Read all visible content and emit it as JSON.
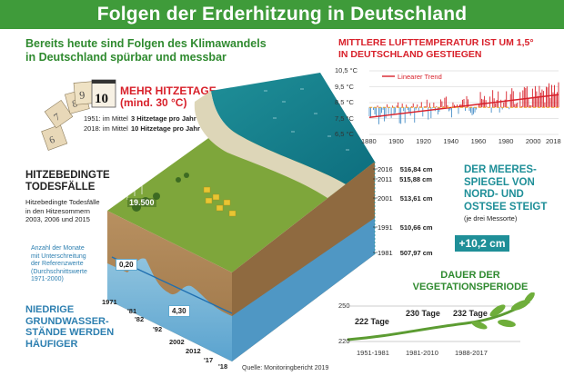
{
  "header": {
    "title": "Folgen der Erderhitzung in Deutschland"
  },
  "subtitle": {
    "line1": "Bereits heute sind Folgen des Klimawandels",
    "line2": "in Deutschland spürbar und messbar"
  },
  "hot_days": {
    "calendar_number": "10",
    "title_line1": "MEHR HITZETAGE",
    "title_line2": "(mind. 30 °C)",
    "rows": [
      {
        "label": "1951: im Mittel",
        "value": "3 Hitzetage pro Jahr"
      },
      {
        "label": "2018: im Mittel",
        "value": "10 Hitzetage pro Jahr"
      }
    ]
  },
  "heat_deaths": {
    "title_line1": "HITZEBEDINGTE",
    "title_line2": "TODESFÄLLE",
    "text_line1": "Hitzebedingte Todesfälle",
    "text_line2": "in den Hitzesommern",
    "text_line3": "2003, 2006 und 2015",
    "value": "19.500"
  },
  "groundwater": {
    "note_line1": "Anzahl der Monate",
    "note_line2": "mit Unterschreitung",
    "note_line3": "der Referenzwerte",
    "note_line4": "(Durchschnittswerte",
    "note_line5": "1971-2000)",
    "title_line1": "NIEDRIGE",
    "title_line2": "GRUNDWASSER-",
    "title_line3": "STÄNDE WERDEN",
    "title_line4": "HÄUFIGER",
    "value_1": "0,20",
    "value_2": "4,30",
    "years": [
      "1971",
      "'81",
      "'82",
      "'92",
      "2002",
      "2012",
      "'17",
      "'18"
    ]
  },
  "temperature": {
    "title_line1": "MITTLERE LUFTTEMPERATUR IST UM 1,5°",
    "title_line2": "IN DEUTSCHLAND GESTIEGEN",
    "legend": "Linearer Trend",
    "y_ticks": [
      "10,5 °C",
      "9,5 °C",
      "8,5 °C",
      "7,5 °C",
      "6,5 °C"
    ],
    "x_ticks": [
      "1880",
      "1900",
      "1920",
      "1940",
      "1960",
      "1980",
      "2000",
      "2018"
    ],
    "colors": {
      "warm": "#d8202a",
      "cold": "#4a90c8",
      "trend": "#d8202a",
      "mean_line": "#f0a020"
    }
  },
  "sea_level": {
    "rows": [
      {
        "year": "2016",
        "value": "516,84 cm"
      },
      {
        "year": "2011",
        "value": "515,88 cm"
      },
      {
        "year": "2001",
        "value": "513,61 cm"
      },
      {
        "year": "1991",
        "value": "510,66 cm"
      },
      {
        "year": "1981",
        "value": "507,97 cm"
      }
    ],
    "title_line1": "DER MEERES-",
    "title_line2": "SPIEGEL VON",
    "title_line3": "NORD- UND",
    "title_line4": "OSTSEE STEIGT",
    "title_note": "(je drei Messorte)",
    "badge": "+10,2 cm"
  },
  "vegetation": {
    "title_line1": "DAUER DER",
    "title_line2": "VEGETATIONSPERIODE",
    "y_top": "250",
    "y_bottom": "220",
    "values": [
      "222 Tage",
      "230 Tage",
      "232 Tage"
    ],
    "periods": [
      "1951-1981",
      "1981-2010",
      "1988-2017"
    ]
  },
  "source": "Quelle: Monitoringbericht 2019"
}
